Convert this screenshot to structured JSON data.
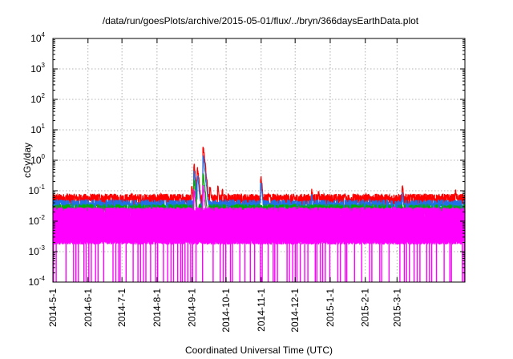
{
  "chart_data": {
    "type": "line",
    "title": "/data/run/goesPlots/archive/2015-05-01/flux/../bryn/366daysEarthData.plot",
    "xlabel": "Coordinated Universal Time (UTC)",
    "ylabel": "cGy/day",
    "yscale": "log",
    "ylim": [
      0.0001,
      10000
    ],
    "xlim": [
      "2014-05-01",
      "2015-04-30"
    ],
    "y_ticks": [
      {
        "mantissa": "10",
        "exp": "-4"
      },
      {
        "mantissa": "10",
        "exp": "-3"
      },
      {
        "mantissa": "10",
        "exp": "-2"
      },
      {
        "mantissa": "10",
        "exp": "-1"
      },
      {
        "mantissa": "10",
        "exp": "0"
      },
      {
        "mantissa": "10",
        "exp": "1"
      },
      {
        "mantissa": "10",
        "exp": "2"
      },
      {
        "mantissa": "10",
        "exp": "3"
      },
      {
        "mantissa": "10",
        "exp": "4"
      }
    ],
    "x_ticks": [
      {
        "label": "2014-5-1",
        "date": "2014-05-01"
      },
      {
        "label": "2014-6-1",
        "date": "2014-06-01"
      },
      {
        "label": "2014-7-1",
        "date": "2014-07-01"
      },
      {
        "label": "2014-8-1",
        "date": "2014-08-01"
      },
      {
        "label": "2014-9-1",
        "date": "2014-09-01"
      },
      {
        "label": "2014-10-1",
        "date": "2014-10-01"
      },
      {
        "label": "2014-11-1",
        "date": "2014-11-01"
      },
      {
        "label": "2014-12-1",
        "date": "2014-12-01"
      },
      {
        "label": "2015-1-1",
        "date": "2015-01-01"
      },
      {
        "label": "2015-2-1",
        "date": "2015-02-01"
      },
      {
        "label": "2015-3-1",
        "date": "2015-03-01"
      }
    ],
    "grid": true,
    "series": [
      {
        "color": "#ff0000",
        "baseline": 0.055,
        "spikes": [
          {
            "date": "2014-05-14",
            "value": 0.09
          },
          {
            "date": "2014-06-11",
            "value": 0.08
          },
          {
            "date": "2014-07-09",
            "value": 0.08
          },
          {
            "date": "2014-08-24",
            "value": 0.08
          },
          {
            "date": "2014-09-01",
            "value": 0.15
          },
          {
            "date": "2014-09-03",
            "value": 0.8
          },
          {
            "date": "2014-09-06",
            "value": 0.6
          },
          {
            "date": "2014-09-11",
            "value": 3.2
          },
          {
            "date": "2014-09-13",
            "value": 0.5
          },
          {
            "date": "2014-09-17",
            "value": 0.15
          },
          {
            "date": "2014-09-24",
            "value": 0.15
          },
          {
            "date": "2014-09-28",
            "value": 0.12
          },
          {
            "date": "2014-11-01",
            "value": 0.32
          },
          {
            "date": "2014-11-09",
            "value": 0.09
          },
          {
            "date": "2014-12-16",
            "value": 0.12
          },
          {
            "date": "2014-12-22",
            "value": 0.1
          },
          {
            "date": "2015-01-14",
            "value": 0.09
          },
          {
            "date": "2015-03-06",
            "value": 0.15
          },
          {
            "date": "2015-04-22",
            "value": 0.11
          }
        ]
      },
      {
        "color": "#1f6fe8",
        "baseline": 0.035,
        "spikes": [
          {
            "date": "2014-09-03",
            "value": 0.5
          },
          {
            "date": "2014-09-06",
            "value": 0.35
          },
          {
            "date": "2014-09-11",
            "value": 1.6
          },
          {
            "date": "2014-09-13",
            "value": 0.3
          },
          {
            "date": "2014-11-01",
            "value": 0.2
          },
          {
            "date": "2014-12-16",
            "value": 0.08
          },
          {
            "date": "2015-03-06",
            "value": 0.09
          }
        ]
      },
      {
        "color": "#00b000",
        "baseline": 0.025,
        "spikes": [
          {
            "date": "2014-09-03",
            "value": 0.25
          },
          {
            "date": "2014-09-11",
            "value": 0.4
          }
        ]
      },
      {
        "color": "#ff00ff",
        "baseline": 0.02,
        "floor": 0.002,
        "dropout_value": 0.0001,
        "spikes": [
          {
            "date": "2014-09-03",
            "value": 0.12
          },
          {
            "date": "2014-09-11",
            "value": 0.15
          }
        ]
      }
    ]
  }
}
